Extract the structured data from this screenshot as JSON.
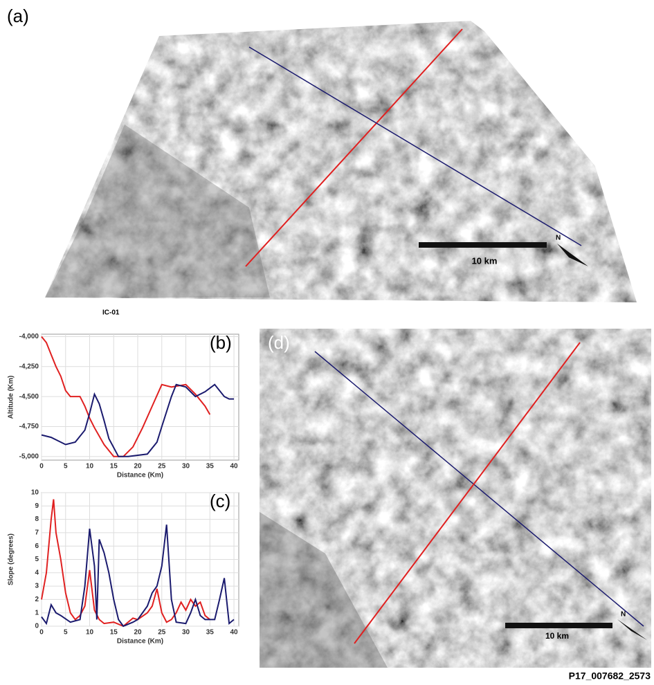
{
  "panels": {
    "a": "(a)",
    "d": "(d)"
  },
  "image_a": {
    "caption": "IC-01",
    "scale": "10 km",
    "north": "N"
  },
  "image_d": {
    "scale": "10 km",
    "north": "N",
    "id": "P17_007682_2573"
  },
  "chart_data": [
    {
      "type": "line",
      "annotation": "(b)",
      "xlabel": "Distance (Km)",
      "ylabel": "Altitude (Km)",
      "xlim": [
        0,
        41
      ],
      "xticks": [
        0,
        5,
        10,
        15,
        20,
        25,
        30,
        35,
        40
      ],
      "ylim": [
        -5030,
        -3980
      ],
      "yticks": [
        {
          "value": -4000,
          "label": "-4,000"
        },
        {
          "value": -4250,
          "label": "-4,250"
        },
        {
          "value": -4500,
          "label": "-4,500"
        },
        {
          "value": -4750,
          "label": "-4,750"
        },
        {
          "value": -5000,
          "label": "-5,000"
        }
      ],
      "grid": true,
      "series": [
        {
          "color": "#e02020",
          "x": [
            0,
            1,
            2,
            3,
            4,
            5,
            6,
            8,
            9,
            10,
            11,
            13,
            15,
            17,
            19,
            21,
            23,
            25,
            27,
            30,
            32,
            34,
            35
          ],
          "values": [
            -4000,
            -4050,
            -4150,
            -4250,
            -4330,
            -4450,
            -4500,
            -4500,
            -4580,
            -4680,
            -4760,
            -4900,
            -5000,
            -5000,
            -4920,
            -4760,
            -4580,
            -4400,
            -4420,
            -4400,
            -4480,
            -4580,
            -4650
          ]
        },
        {
          "color": "#1a1a6e",
          "x": [
            0,
            2,
            5,
            7,
            9,
            10,
            11,
            12,
            13,
            14,
            16,
            18,
            22,
            24,
            25,
            27,
            28,
            30,
            32,
            34,
            36,
            38,
            39,
            40
          ],
          "values": [
            -4820,
            -4840,
            -4900,
            -4880,
            -4780,
            -4640,
            -4480,
            -4560,
            -4700,
            -4850,
            -5000,
            -5000,
            -4980,
            -4880,
            -4750,
            -4500,
            -4400,
            -4420,
            -4500,
            -4460,
            -4400,
            -4500,
            -4520,
            -4520
          ]
        }
      ]
    },
    {
      "type": "line",
      "annotation": "(c)",
      "xlabel": "Distance (Km)",
      "ylabel": "Slope (degrees)",
      "xlim": [
        0,
        41
      ],
      "xticks": [
        0,
        5,
        10,
        15,
        20,
        25,
        30,
        35,
        40
      ],
      "ylim": [
        0,
        10
      ],
      "yticks": [
        0,
        1,
        2,
        3,
        4,
        5,
        6,
        7,
        8,
        9,
        10
      ],
      "grid": true,
      "series": [
        {
          "color": "#e02020",
          "x": [
            0,
            1,
            2,
            2.5,
            3,
            4,
            5,
            6,
            7,
            8,
            9,
            10,
            11,
            12,
            13,
            15,
            17,
            19,
            20,
            22,
            23,
            24,
            25,
            26,
            27,
            28,
            29,
            30,
            31,
            32,
            33,
            34,
            35
          ],
          "values": [
            2,
            4,
            8,
            9.5,
            7,
            5,
            2.5,
            1,
            0.5,
            0.8,
            1.5,
            4.2,
            1.2,
            0.5,
            0.2,
            0.3,
            0,
            0.6,
            0.5,
            1,
            1.5,
            2.8,
            1,
            0.3,
            0.5,
            1,
            1.8,
            1.2,
            2,
            1.5,
            1.8,
            0.8,
            0.5
          ]
        },
        {
          "color": "#1a1a6e",
          "x": [
            0,
            1,
            2,
            3,
            4,
            6,
            8,
            9,
            10,
            11,
            11.5,
            12,
            13,
            14,
            15,
            16,
            17,
            19,
            20,
            22,
            23,
            24,
            25,
            26,
            27,
            28,
            30,
            31,
            32,
            33,
            34,
            36,
            37,
            38,
            39,
            40
          ],
          "values": [
            0.7,
            0.2,
            1.6,
            1,
            0.8,
            0.3,
            0.5,
            3,
            7.3,
            4.5,
            0.5,
            6.5,
            5.5,
            4,
            2,
            0.5,
            0,
            0.3,
            0.5,
            1.5,
            2.5,
            3,
            4.5,
            7.6,
            2,
            0.3,
            0.2,
            1,
            2,
            0.8,
            0.5,
            0.5,
            2,
            3.6,
            0.2,
            0.5
          ]
        }
      ]
    }
  ]
}
